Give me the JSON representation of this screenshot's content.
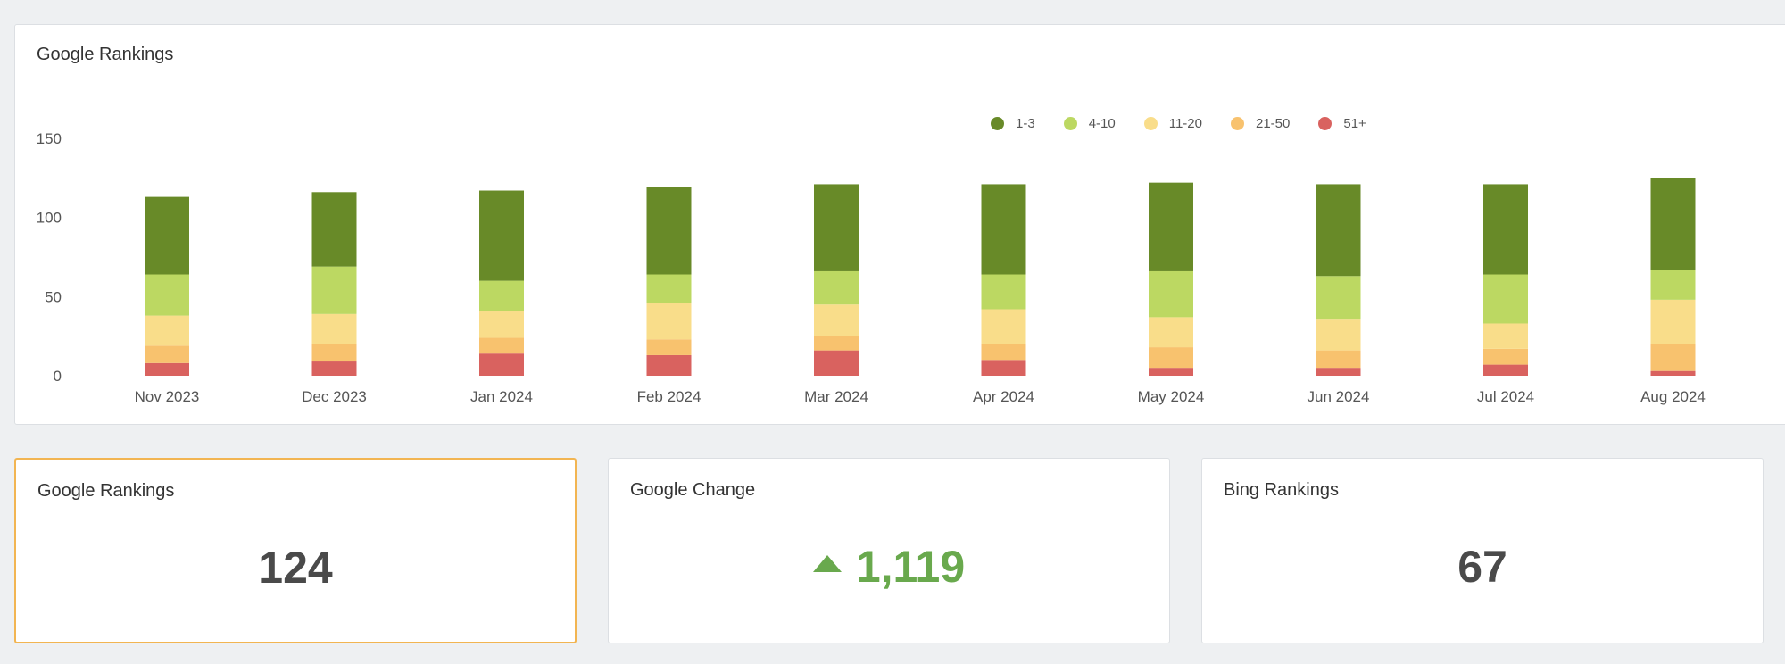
{
  "chart_card": {
    "title": "Google Rankings"
  },
  "chart_data": {
    "type": "bar",
    "stacked": true,
    "title": "Google Rankings",
    "categories": [
      "Nov 2023",
      "Dec 2023",
      "Jan 2024",
      "Feb 2024",
      "Mar 2024",
      "Apr 2024",
      "May 2024",
      "Jun 2024",
      "Jul 2024",
      "Aug 2024"
    ],
    "series": [
      {
        "name": "51+",
        "color": "#d9625f",
        "values": [
          8,
          9,
          14,
          13,
          16,
          10,
          5,
          5,
          7,
          3
        ]
      },
      {
        "name": "21-50",
        "color": "#f8c26e",
        "values": [
          11,
          11,
          10,
          10,
          9,
          10,
          13,
          11,
          10,
          17
        ]
      },
      {
        "name": "11-20",
        "color": "#f9dd8a",
        "values": [
          19,
          19,
          17,
          23,
          20,
          22,
          19,
          20,
          16,
          28
        ]
      },
      {
        "name": "4-10",
        "color": "#bcd862",
        "values": [
          26,
          30,
          19,
          18,
          21,
          22,
          29,
          27,
          31,
          19
        ]
      },
      {
        "name": "1-3",
        "color": "#688a28",
        "values": [
          49,
          47,
          57,
          55,
          55,
          57,
          56,
          58,
          57,
          58
        ]
      }
    ],
    "legend_order": [
      "1-3",
      "4-10",
      "11-20",
      "21-50",
      "51+"
    ],
    "legend_position": "top-right",
    "ylim": [
      0,
      150
    ],
    "yticks": [
      0,
      50,
      100,
      150
    ],
    "grid": false
  },
  "stats": [
    {
      "title": "Google Rankings",
      "value": "124",
      "selected": true,
      "trend": "none"
    },
    {
      "title": "Google Change",
      "value": "1,119",
      "selected": false,
      "trend": "up"
    },
    {
      "title": "Bing Rankings",
      "value": "67",
      "selected": false,
      "trend": "none"
    }
  ],
  "colors": {
    "positive": "#69a94d",
    "selected_border": "#f2b552"
  }
}
